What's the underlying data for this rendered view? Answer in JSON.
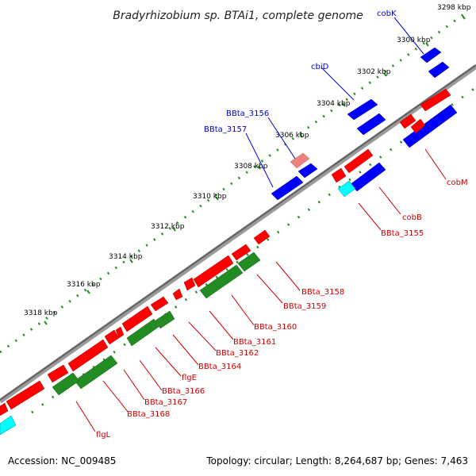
{
  "title": "Bradyrhizobium sp. BTAi1, complete genome",
  "footer": {
    "accession": "Accession: NC_009485",
    "topology": "Topology: circular; Length: 8,264,687 bp; Genes: 7,463"
  },
  "colors": {
    "backbone": "#707070",
    "tick": "#228b22",
    "forward_gene": "#ff0000",
    "forward_gene_light": "#f08080",
    "forward_cds": "#0000ff",
    "reverse_gene": "#ff0000",
    "reverse_cds_blue": "#0000ff",
    "reverse_cds_green": "#228b22",
    "reverse_cds_cyan": "#00ffff",
    "label_red": "#cc0000",
    "label_blue": "#0000cc"
  },
  "ticks": [
    {
      "label": "3298 kbp"
    },
    {
      "label": "3300 kbp"
    },
    {
      "label": "3302 kbp"
    },
    {
      "label": "3304 kbp"
    },
    {
      "label": "3306 kbp"
    },
    {
      "label": "3308 kbp"
    },
    {
      "label": "3310 kbp"
    },
    {
      "label": "3312 kbp"
    },
    {
      "label": "3314 kbp"
    },
    {
      "label": "3316 kbp"
    },
    {
      "label": "3318 kbp"
    }
  ],
  "gene_labels": [
    {
      "text": "cobK",
      "color": "blue"
    },
    {
      "text": "cbiD",
      "color": "blue"
    },
    {
      "text": "BBta_3156",
      "color": "blue"
    },
    {
      "text": "BBta_3157",
      "color": "blue"
    },
    {
      "text": "cobM",
      "color": "red"
    },
    {
      "text": "cobB",
      "color": "red"
    },
    {
      "text": "BBta_3155",
      "color": "red"
    },
    {
      "text": "BBta_3158",
      "color": "red"
    },
    {
      "text": "BBta_3159",
      "color": "red"
    },
    {
      "text": "BBta_3160",
      "color": "red"
    },
    {
      "text": "BBta_3161",
      "color": "red"
    },
    {
      "text": "BBta_3162",
      "color": "red"
    },
    {
      "text": "BBta_3164",
      "color": "red"
    },
    {
      "text": "flgE",
      "color": "red"
    },
    {
      "text": "BBta_3166",
      "color": "red"
    },
    {
      "text": "BBta_3167",
      "color": "red"
    },
    {
      "text": "BBta_3168",
      "color": "red"
    },
    {
      "text": "flgL",
      "color": "red"
    }
  ]
}
